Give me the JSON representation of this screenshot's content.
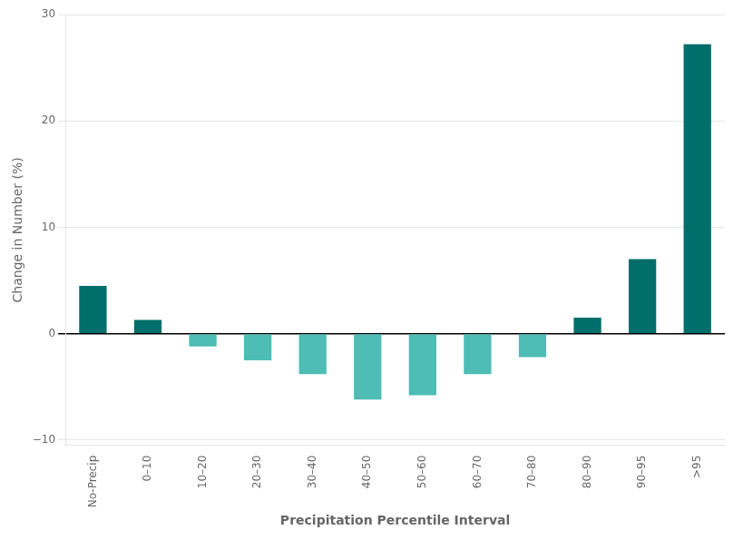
{
  "chart_data": {
    "type": "bar",
    "categories": [
      "No-Precip",
      "0–10",
      "10–20",
      "20–30",
      "30–40",
      "40–50",
      "50–60",
      "60–70",
      "70–80",
      "80–90",
      "90–95",
      ">95"
    ],
    "values": [
      4.5,
      1.3,
      -1.2,
      -2.5,
      -3.8,
      -6.2,
      -5.8,
      -3.8,
      -2.2,
      1.5,
      7.0,
      27.2
    ],
    "colors": [
      "#006e6a",
      "#006e6a",
      "#4dbdb5",
      "#4dbdb5",
      "#4dbdb5",
      "#4dbdb5",
      "#4dbdb5",
      "#4dbdb5",
      "#4dbdb5",
      "#006e6a",
      "#006e6a",
      "#006e6a"
    ],
    "xlabel": "Precipitation Percentile Interval",
    "ylabel": "Change in Number (%)",
    "ylim": [
      -10.5,
      30
    ],
    "yticks": [
      {
        "value": -10,
        "label": "−10"
      },
      0,
      10,
      20,
      30
    ],
    "grid": true
  }
}
